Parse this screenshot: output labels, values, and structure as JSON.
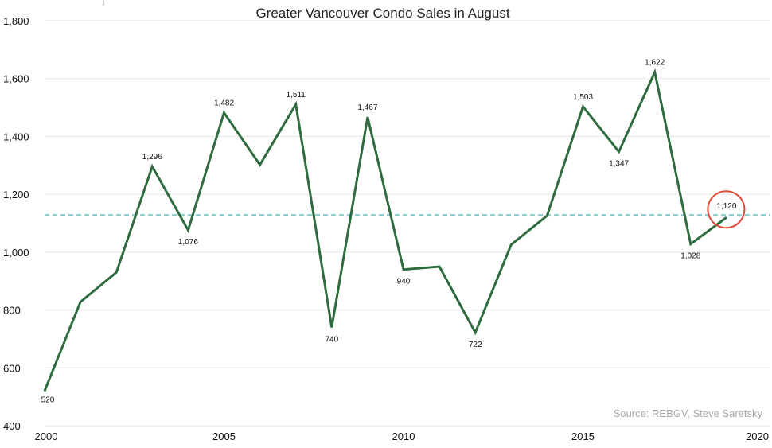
{
  "chart_data": {
    "type": "line",
    "title": "Greater Vancouver Condo Sales in August",
    "xlabel": "",
    "ylabel": "",
    "xlim": [
      2000,
      2020
    ],
    "ylim": [
      400,
      1800
    ],
    "x_ticks": [
      "2000",
      "2005",
      "2010",
      "2015",
      "2020"
    ],
    "y_ticks": [
      "400",
      "600",
      "800",
      "1,000",
      "1,200",
      "1,400",
      "1,600",
      "1,800"
    ],
    "grid": "horizontal",
    "series": [
      {
        "color": "#2e6b3e",
        "points": [
          {
            "x": 2000,
            "y": 520,
            "label": "520"
          },
          {
            "x": 2001,
            "y": 828,
            "label": ""
          },
          {
            "x": 2002,
            "y": 930,
            "label": ""
          },
          {
            "x": 2003,
            "y": 1296,
            "label": "1,296"
          },
          {
            "x": 2004,
            "y": 1076,
            "label": "1,076"
          },
          {
            "x": 2005,
            "y": 1482,
            "label": "1,482"
          },
          {
            "x": 2006,
            "y": 1302,
            "label": ""
          },
          {
            "x": 2007,
            "y": 1511,
            "label": "1,511"
          },
          {
            "x": 2008,
            "y": 740,
            "label": "740"
          },
          {
            "x": 2009,
            "y": 1467,
            "label": "1,467"
          },
          {
            "x": 2010,
            "y": 940,
            "label": "940"
          },
          {
            "x": 2011,
            "y": 950,
            "label": ""
          },
          {
            "x": 2012,
            "y": 722,
            "label": "722"
          },
          {
            "x": 2013,
            "y": 1026,
            "label": ""
          },
          {
            "x": 2014,
            "y": 1126,
            "label": ""
          },
          {
            "x": 2015,
            "y": 1503,
            "label": "1,503"
          },
          {
            "x": 2016,
            "y": 1347,
            "label": "1,347"
          },
          {
            "x": 2017,
            "y": 1622,
            "label": "1,622"
          },
          {
            "x": 2018,
            "y": 1028,
            "label": "1,028"
          },
          {
            "x": 2019,
            "y": 1120,
            "label": "1,120"
          }
        ]
      }
    ],
    "reference_line": {
      "y": 1128,
      "style": "dashed",
      "color": "#7fd0cf"
    },
    "highlight": {
      "x": 2019,
      "y": 1120,
      "color": "#e04a3a",
      "shape": "circle"
    },
    "source_note": "Source: REBGV, Steve Saretsky"
  }
}
